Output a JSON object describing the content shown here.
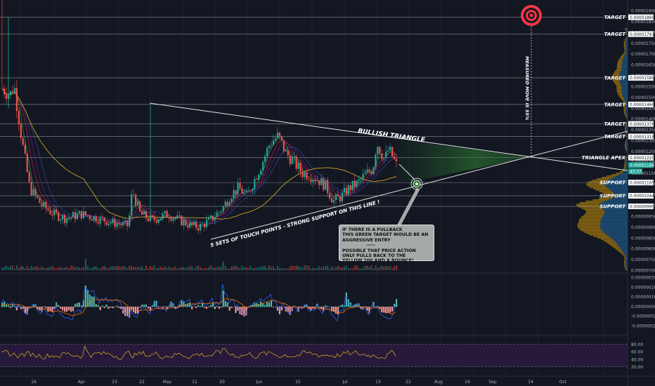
{
  "chart_data": {
    "type": "candlestick",
    "price_ticks": [
      "0.00001900",
      "0.00001850",
      "0.00001800",
      "0.00001750",
      "0.00001700",
      "0.00001650",
      "0.00001600",
      "0.00001550",
      "0.00001500",
      "0.00001450",
      "0.00001400",
      "0.00001350",
      "0.00001300",
      "0.00001250",
      "0.00001200",
      "0.00001150",
      "0.00001100",
      "0.00001050",
      "0.00001000",
      "0.00000950",
      "0.00000900",
      "0.00000850",
      "0.00000800",
      "0.00000750",
      "0.00000700"
    ],
    "price_ylim": [
      7e-06,
      1.9e-05
    ],
    "macd_ticks": [
      "0.00000030",
      "0.00000020",
      "0.00000010",
      "0.00000000",
      "-0.00000010",
      "-0.00000020"
    ],
    "rsi_ticks": [
      "80.00",
      "60.00",
      "40.00",
      "20.00"
    ],
    "time_labels": [
      "16",
      "Apr",
      "13",
      "22",
      "May",
      "11",
      "20",
      "Jun",
      "15",
      "Jul",
      "13",
      "22",
      "Aug",
      "19",
      "Sep",
      "14",
      "Oct"
    ],
    "price_labels": [
      {
        "value": "0.00001869",
        "kind": "white"
      },
      {
        "value": "0.00001791",
        "kind": "white"
      },
      {
        "value": "0.00001589",
        "kind": "white"
      },
      {
        "value": "0.00001466",
        "kind": "white"
      },
      {
        "value": "0.00001376",
        "kind": "white"
      },
      {
        "value": "0.00001318",
        "kind": "white"
      },
      {
        "value": "0.00001220",
        "kind": "white"
      },
      {
        "value": "0.00001186",
        "kind": "green"
      },
      {
        "value": "0.00001105",
        "kind": "white"
      },
      {
        "value": "0.00001044",
        "kind": "white"
      },
      {
        "value": "0.00000995",
        "kind": "white"
      }
    ],
    "countdown": "43:37",
    "level_labels": [
      {
        "text": "TARGET",
        "price": 1.869e-05
      },
      {
        "text": "TARGET",
        "price": 1.791e-05
      },
      {
        "text": "TARGET",
        "price": 1.589e-05
      },
      {
        "text": "TARGET",
        "price": 1.466e-05
      },
      {
        "text": "TARGET",
        "price": 1.376e-05
      },
      {
        "text": "TARGET",
        "price": 1.318e-05
      },
      {
        "text": "TRIANGLE APEX",
        "price": 1.22e-05
      },
      {
        "text": "SUPPORT",
        "price": 1.105e-05
      },
      {
        "text": "SUPPORT",
        "price": 1.044e-05
      },
      {
        "text": "SUPPORT",
        "price": 9.95e-06
      }
    ],
    "annotations": {
      "triangle": "BULLISH TRIANGLE",
      "support_line": "5 SETS OF TOUCH POINTS - STRONG SUPPORT ON THIS LINE !",
      "measured_move": "MEASURED MOVE IS 55%",
      "note_lines": [
        "IF THERE IS A PULLBACK",
        "THIS GREEN TARGET WOULD BE AN",
        "AGGRESSIVE ENTRY",
        "-----",
        "POSSIBLE THAT PRICE ACTION",
        "ONLY PULLS BACK TO THE",
        "YELLOW 200 AND A BOUNCE!"
      ]
    },
    "price_path": [
      [
        0,
        1540
      ],
      [
        0.02,
        1510
      ],
      [
        0.03,
        1560
      ],
      [
        0.05,
        1300
      ],
      [
        0.07,
        1080
      ],
      [
        0.1,
        1000
      ],
      [
        0.13,
        960
      ],
      [
        0.16,
        940
      ],
      [
        0.2,
        960
      ],
      [
        0.24,
        940
      ],
      [
        0.28,
        920
      ],
      [
        0.32,
        905
      ],
      [
        0.33,
        1070
      ],
      [
        0.35,
        960
      ],
      [
        0.38,
        930
      ],
      [
        0.42,
        960
      ],
      [
        0.45,
        930
      ],
      [
        0.48,
        905
      ],
      [
        0.5,
        900
      ],
      [
        0.53,
        935
      ],
      [
        0.56,
        990
      ],
      [
        0.58,
        1050
      ],
      [
        0.6,
        1080
      ],
      [
        0.62,
        1040
      ],
      [
        0.64,
        1120
      ],
      [
        0.66,
        1200
      ],
      [
        0.68,
        1290
      ],
      [
        0.7,
        1320
      ],
      [
        0.72,
        1240
      ],
      [
        0.74,
        1200
      ],
      [
        0.76,
        1150
      ],
      [
        0.78,
        1140
      ],
      [
        0.8,
        1120
      ],
      [
        0.82,
        1090
      ],
      [
        0.84,
        1020
      ],
      [
        0.86,
        1040
      ],
      [
        0.88,
        1080
      ],
      [
        0.9,
        1100
      ],
      [
        0.92,
        1140
      ],
      [
        0.94,
        1170
      ],
      [
        0.95,
        1290
      ],
      [
        0.97,
        1210
      ],
      [
        0.98,
        1260
      ],
      [
        1.0,
        1186
      ]
    ],
    "colors": {
      "up": "#26a69a",
      "down": "#ef5350",
      "ma200": "#c9a227",
      "macd": "#2962ff",
      "signal": "#ff6d00",
      "rsi": "#c9a227",
      "target": "#f23645"
    }
  }
}
